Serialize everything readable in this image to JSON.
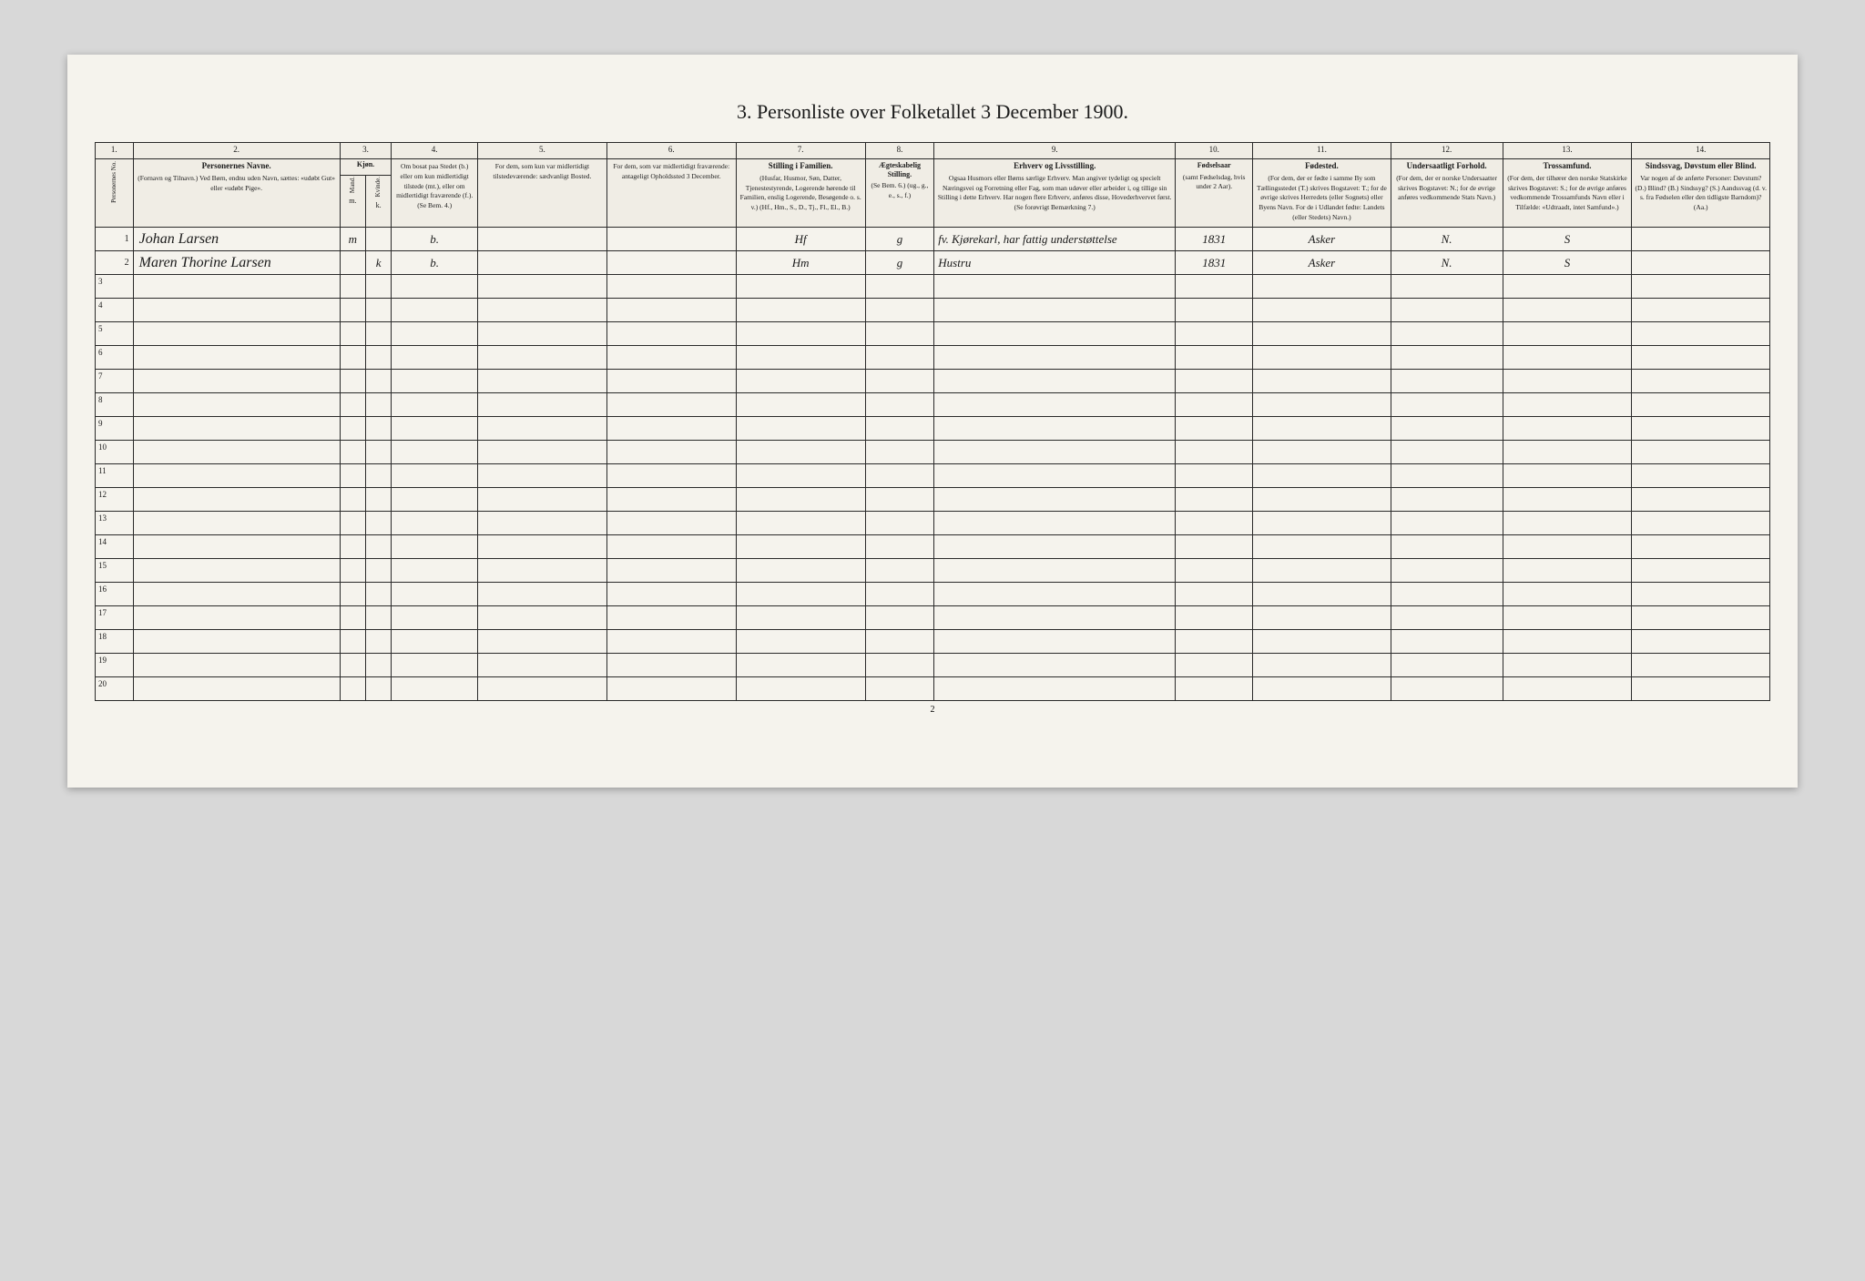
{
  "title": "3. Personliste over Folketallet 3 December 1900.",
  "page_number": "2",
  "column_numbers": [
    "1.",
    "2.",
    "3.",
    "4.",
    "5.",
    "6.",
    "7.",
    "8.",
    "9.",
    "10.",
    "11.",
    "12.",
    "13.",
    "14."
  ],
  "headers": {
    "c1": {
      "title": "Personernes No."
    },
    "c2": {
      "title": "Personernes Navne.",
      "sub": "(Fornavn og Tilnavn.)\nVed Børn, endnu uden Navn, sættes: «udøbt Gut» eller «udøbt Pige»."
    },
    "c3": {
      "title": "Kjøn.",
      "sub_m": "Mand.",
      "sub_k": "Kvinde.",
      "m": "m.",
      "k": "k."
    },
    "c4": {
      "title": "",
      "sub": "Om bosat paa Stedet (b.) eller om kun midlertidigt tilstede (mt.), eller om midlertidigt fraværende (f.). (Se Bem. 4.)"
    },
    "c5": {
      "title": "",
      "sub": "For dem, som kun var midlertidigt tilstedeværende:\nsædvanligt Bosted."
    },
    "c6": {
      "title": "",
      "sub": "For dem, som var midlertidigt fraværende:\nantageligt Opholdssted 3 December."
    },
    "c7": {
      "title": "Stilling i Familien.",
      "sub": "(Husfar, Husmor, Søn, Datter, Tjenestestyrende, Logerende hørende til Familien, enslig Logerende, Besøgende o. s. v.)\n(Hf., Hm., S., D., Tj., Fl., El., B.)"
    },
    "c8": {
      "title": "Ægteskabelig Stilling.",
      "sub": "(Se Bem. 6.)\n(ug., g., e., s., f.)"
    },
    "c9": {
      "title": "Erhverv og Livsstilling.",
      "sub": "Ogsaa Husmors eller Børns særlige Erhverv. Man angiver tydeligt og specielt Næringsvei og Forretning eller Fag, som man udøver eller arbeider i, og tillige sin Stilling i dette Erhverv. Har nogen flere Erhverv, anføres disse, Hovederhvervet først.\n(Se forøvrigt Bemærkning 7.)"
    },
    "c10": {
      "title": "Fødselsaar",
      "sub": "(samt Fødselsdag, hvis under 2 Aar)."
    },
    "c11": {
      "title": "Fødested.",
      "sub": "(For dem, der er fødte i samme By som Tællingsstedet (T.) skrives Bogstavet: T.; for de øvrige skrives Herredets (eller Sognets) eller Byens Navn. For de i Udlandet fødte: Landets (eller Stedets) Navn.)"
    },
    "c12": {
      "title": "Undersaatligt Forhold.",
      "sub": "(For dem, der er norske Undersaatter skrives Bogstavet: N.; for de øvrige anføres vedkommende Stats Navn.)"
    },
    "c13": {
      "title": "Trossamfund.",
      "sub": "(For dem, der tilhører den norske Statskirke skrives Bogstavet: S.; for de øvrige anføres vedkommende Trossamfunds Navn eller i Tilfælde: «Udtraadt, intet Samfund».)"
    },
    "c14": {
      "title": "Sindssvag, Døvstum eller Blind.",
      "sub": "Var nogen af de anførte Personer: Døvstum? (D.) Blind? (B.) Sindssyg? (S.) Aandssvag (d. v. s. fra Fødselen eller den tidligste Barndom)? (Aa.)"
    }
  },
  "rows": [
    {
      "num": "1",
      "name": "Johan Larsen",
      "sex_m": "m",
      "sex_k": "",
      "resident": "b.",
      "c5": "",
      "c6": "",
      "family_pos": "Hf",
      "marital": "g",
      "occupation": "fv. Kjørekarl, har fattig understøttelse",
      "birth_year": "1831",
      "birthplace": "Asker",
      "subject": "N.",
      "religion": "S",
      "disability": ""
    },
    {
      "num": "2",
      "name": "Maren Thorine Larsen",
      "sex_m": "",
      "sex_k": "k",
      "resident": "b.",
      "c5": "",
      "c6": "",
      "family_pos": "Hm",
      "marital": "g",
      "occupation": "Hustru",
      "birth_year": "1831",
      "birthplace": "Asker",
      "subject": "N.",
      "religion": "S",
      "disability": ""
    }
  ],
  "empty_row_numbers": [
    "3",
    "4",
    "5",
    "6",
    "7",
    "8",
    "9",
    "10",
    "11",
    "12",
    "13",
    "14",
    "15",
    "16",
    "17",
    "18",
    "19",
    "20"
  ]
}
